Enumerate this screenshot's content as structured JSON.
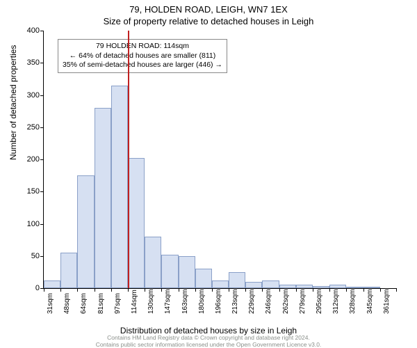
{
  "title_main": "79, HOLDEN ROAD, LEIGH, WN7 1EX",
  "title_sub": "Size of property relative to detached houses in Leigh",
  "ylabel": "Number of detached properties",
  "xlabel": "Distribution of detached houses by size in Leigh",
  "footer_line1": "Contains HM Land Registry data © Crown copyright and database right 2024.",
  "footer_line2": "Contains public sector information licensed under the Open Government Licence v3.0.",
  "annotation": {
    "line1": "79 HOLDEN ROAD: 114sqm",
    "line2": "← 64% of detached houses are smaller (811)",
    "line3": "35% of semi-detached houses are larger (446) →"
  },
  "chart": {
    "type": "histogram",
    "ylim": [
      0,
      400
    ],
    "ytick_step": 50,
    "background_color": "#ffffff",
    "bar_fill": "#d6e0f2",
    "bar_stroke": "#8aa0c8",
    "marker_color": "#c02020",
    "marker_x_index": 5,
    "x_categories": [
      "31sqm",
      "48sqm",
      "64sqm",
      "81sqm",
      "97sqm",
      "114sqm",
      "130sqm",
      "147sqm",
      "163sqm",
      "180sqm",
      "196sqm",
      "213sqm",
      "229sqm",
      "246sqm",
      "262sqm",
      "279sqm",
      "295sqm",
      "312sqm",
      "328sqm",
      "345sqm",
      "361sqm"
    ],
    "values": [
      12,
      55,
      175,
      280,
      315,
      202,
      80,
      52,
      50,
      30,
      12,
      25,
      10,
      12,
      5,
      5,
      3,
      5,
      2,
      2,
      0
    ],
    "title_fontsize": 13,
    "label_fontsize": 12,
    "tick_fontsize": 11
  }
}
